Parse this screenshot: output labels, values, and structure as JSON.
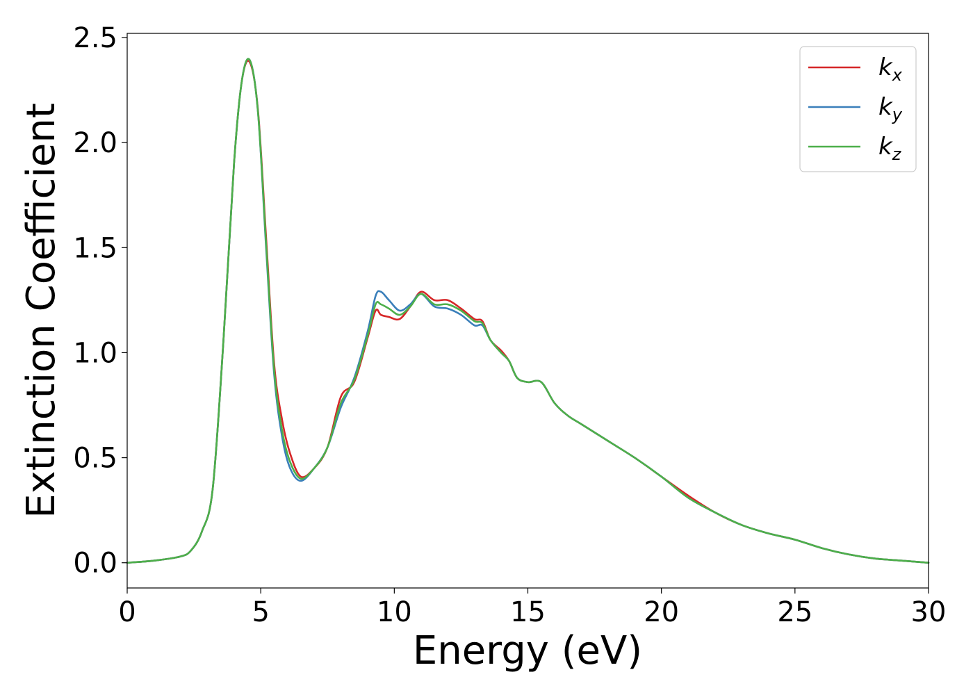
{
  "chart_data": {
    "type": "line",
    "xlabel": "Energy (eV)",
    "ylabel": "Extinction Coefficient",
    "xlim": [
      0,
      30
    ],
    "ylim": [
      -0.12,
      2.52
    ],
    "xticks": [
      0,
      5,
      10,
      15,
      20,
      25,
      30
    ],
    "xtick_labels": [
      "0",
      "5",
      "10",
      "15",
      "20",
      "25",
      "30"
    ],
    "yticks": [
      0.0,
      0.5,
      1.0,
      1.5,
      2.0,
      2.5
    ],
    "ytick_labels": [
      "0.0",
      "0.5",
      "1.0",
      "1.5",
      "2.0",
      "2.5"
    ],
    "grid": false,
    "legend_position": "top-right",
    "series": [
      {
        "name": "k",
        "subscript": "x",
        "color": "#d62728",
        "x": [
          0,
          1,
          2,
          2.4,
          2.8,
          3.2,
          3.6,
          4.0,
          4.3,
          4.6,
          4.9,
          5.2,
          5.5,
          5.8,
          6.1,
          6.5,
          7.0,
          7.5,
          8.0,
          8.5,
          9.0,
          9.3,
          9.5,
          9.8,
          10.2,
          10.6,
          11.0,
          11.5,
          12.0,
          12.5,
          13.0,
          13.3,
          13.6,
          14.0,
          14.3,
          14.6,
          15.0,
          15.5,
          16.0,
          16.5,
          17.0,
          18.0,
          19.0,
          20.0,
          21.0,
          22.0,
          23.0,
          24.0,
          25.0,
          26.0,
          27.0,
          28.0,
          29.0,
          30.0
        ],
        "values": [
          0.0,
          0.01,
          0.03,
          0.06,
          0.15,
          0.35,
          1.05,
          1.9,
          2.3,
          2.38,
          2.15,
          1.55,
          0.95,
          0.68,
          0.52,
          0.41,
          0.45,
          0.55,
          0.79,
          0.86,
          1.07,
          1.2,
          1.18,
          1.17,
          1.16,
          1.22,
          1.29,
          1.25,
          1.25,
          1.21,
          1.16,
          1.15,
          1.06,
          1.01,
          0.96,
          0.88,
          0.86,
          0.86,
          0.76,
          0.7,
          0.66,
          0.58,
          0.5,
          0.41,
          0.32,
          0.24,
          0.18,
          0.14,
          0.11,
          0.07,
          0.04,
          0.02,
          0.01,
          0.0
        ]
      },
      {
        "name": "k",
        "subscript": "y",
        "color": "#3a7fba",
        "x": [
          0,
          1,
          2,
          2.4,
          2.8,
          3.2,
          3.6,
          4.0,
          4.3,
          4.6,
          4.9,
          5.2,
          5.5,
          5.8,
          6.1,
          6.5,
          7.0,
          7.5,
          8.0,
          8.5,
          9.0,
          9.3,
          9.5,
          9.8,
          10.2,
          10.6,
          11.0,
          11.5,
          12.0,
          12.5,
          13.0,
          13.3,
          13.6,
          14.0,
          14.3,
          14.6,
          15.0,
          15.5,
          16.0,
          16.5,
          17.0,
          18.0,
          19.0,
          20.0,
          21.0,
          22.0,
          23.0,
          24.0,
          25.0,
          26.0,
          27.0,
          28.0,
          29.0,
          30.0
        ],
        "values": [
          0.0,
          0.01,
          0.03,
          0.06,
          0.15,
          0.35,
          1.05,
          1.9,
          2.3,
          2.39,
          2.14,
          1.5,
          0.9,
          0.6,
          0.45,
          0.39,
          0.45,
          0.55,
          0.74,
          0.88,
          1.1,
          1.27,
          1.29,
          1.25,
          1.2,
          1.23,
          1.28,
          1.22,
          1.21,
          1.18,
          1.13,
          1.13,
          1.06,
          1.0,
          0.96,
          0.88,
          0.86,
          0.86,
          0.76,
          0.7,
          0.66,
          0.58,
          0.5,
          0.41,
          0.31,
          0.24,
          0.18,
          0.14,
          0.11,
          0.07,
          0.04,
          0.02,
          0.01,
          0.0
        ]
      },
      {
        "name": "k",
        "subscript": "z",
        "color": "#4daf4a",
        "x": [
          0,
          1,
          2,
          2.4,
          2.8,
          3.2,
          3.6,
          4.0,
          4.3,
          4.6,
          4.9,
          5.2,
          5.5,
          5.8,
          6.1,
          6.5,
          7.0,
          7.5,
          8.0,
          8.5,
          9.0,
          9.3,
          9.5,
          9.8,
          10.2,
          10.6,
          11.0,
          11.5,
          12.0,
          12.5,
          13.0,
          13.3,
          13.6,
          14.0,
          14.3,
          14.6,
          15.0,
          15.5,
          16.0,
          16.5,
          17.0,
          18.0,
          19.0,
          20.0,
          21.0,
          22.0,
          23.0,
          24.0,
          25.0,
          26.0,
          27.0,
          28.0,
          29.0,
          30.0
        ],
        "values": [
          0.0,
          0.01,
          0.03,
          0.06,
          0.15,
          0.35,
          1.05,
          1.9,
          2.3,
          2.39,
          2.14,
          1.52,
          0.92,
          0.63,
          0.48,
          0.4,
          0.45,
          0.55,
          0.76,
          0.87,
          1.08,
          1.23,
          1.23,
          1.21,
          1.18,
          1.22,
          1.28,
          1.23,
          1.23,
          1.2,
          1.15,
          1.14,
          1.06,
          1.0,
          0.96,
          0.88,
          0.86,
          0.86,
          0.76,
          0.7,
          0.66,
          0.58,
          0.5,
          0.41,
          0.31,
          0.24,
          0.18,
          0.14,
          0.11,
          0.07,
          0.04,
          0.02,
          0.01,
          0.0
        ]
      }
    ]
  }
}
